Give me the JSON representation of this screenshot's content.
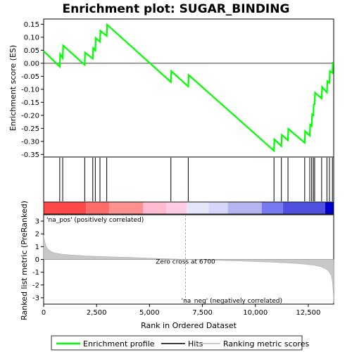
{
  "chart_data": {
    "type": "line",
    "title": "Enrichment plot: SUGAR_BINDING",
    "n_genes": 13700,
    "enrichment_panel": {
      "ylabel": "Enrichment score (ES)",
      "ylim": [
        -0.36,
        0.17
      ],
      "yticks": [
        0.15,
        0.1,
        0.05,
        0.0,
        -0.05,
        -0.1,
        -0.15,
        -0.2,
        -0.25,
        -0.3,
        -0.35
      ],
      "ytick_labels": [
        "0.15",
        "0.10",
        "0.05",
        "0.00",
        "-0.05",
        "-0.10",
        "-0.15",
        "-0.20",
        "-0.25",
        "-0.30",
        "-0.35"
      ],
      "series": [
        {
          "name": "Enrichment profile",
          "color": "#00ff00",
          "x": [
            0,
            760,
            780,
            900,
            920,
            1940,
            1960,
            2320,
            2340,
            2440,
            2460,
            2660,
            2680,
            2980,
            3000,
            6010,
            6030,
            6830,
            6850,
            10880,
            10900,
            11230,
            11250,
            11540,
            11560,
            12330,
            12350,
            12570,
            12590,
            12660,
            12680,
            12740,
            12760,
            12800,
            12820,
            13130,
            13150,
            13380,
            13400,
            13500,
            13520,
            13640,
            13660
          ],
          "y": [
            0.047,
            -0.013,
            0.035,
            0.02,
            0.068,
            -0.006,
            0.041,
            0.018,
            0.058,
            0.049,
            0.097,
            0.082,
            0.125,
            0.105,
            0.148,
            -0.072,
            -0.03,
            -0.089,
            -0.045,
            -0.336,
            -0.292,
            -0.318,
            -0.275,
            -0.296,
            -0.252,
            -0.305,
            -0.261,
            -0.278,
            -0.236,
            -0.241,
            -0.197,
            -0.2,
            -0.158,
            -0.157,
            -0.113,
            -0.135,
            -0.091,
            -0.112,
            -0.069,
            -0.075,
            -0.03,
            -0.037,
            0.005
          ]
        }
      ]
    },
    "hits_panel": {
      "label": "Hits",
      "positions": [
        760,
        900,
        1940,
        2320,
        2440,
        2660,
        2980,
        6010,
        6830,
        10880,
        11230,
        11540,
        12330,
        12570,
        12660,
        12740,
        12800,
        13130,
        13380,
        13500,
        13640
      ]
    },
    "heatmap_bar": {
      "segments": [
        {
          "from": 0,
          "to": 2000,
          "color": "#ff4848"
        },
        {
          "from": 2000,
          "to": 3100,
          "color": "#ff6a6a"
        },
        {
          "from": 3100,
          "to": 4700,
          "color": "#ff9090"
        },
        {
          "from": 4700,
          "to": 5800,
          "color": "#ffbbd0"
        },
        {
          "from": 5800,
          "to": 6750,
          "color": "#ffcce6"
        },
        {
          "from": 6750,
          "to": 7800,
          "color": "#e6e6fa"
        },
        {
          "from": 7800,
          "to": 8700,
          "color": "#d6d6fa"
        },
        {
          "from": 8700,
          "to": 10300,
          "color": "#b4b4f0"
        },
        {
          "from": 10300,
          "to": 11300,
          "color": "#7878f0"
        },
        {
          "from": 11300,
          "to": 13300,
          "color": "#5050e0"
        },
        {
          "from": 13300,
          "to": 13700,
          "color": "#0000cc"
        }
      ]
    },
    "metric_panel": {
      "ylabel": "Ranked list metric (PreRanked)",
      "xlabel": "Rank in Ordered Dataset",
      "ylim": [
        -3.5,
        3.5
      ],
      "yticks": [
        3,
        2,
        1,
        0,
        -1,
        -2,
        -3
      ],
      "ytick_labels": [
        "3",
        "2",
        "1",
        "0",
        "-1",
        "-2",
        "-3"
      ],
      "xticks": [
        0,
        2500,
        5000,
        7500,
        10000,
        12500
      ],
      "xtick_labels": [
        "0",
        "2,500",
        "5,000",
        "7,500",
        "10,000",
        "12,500"
      ],
      "x": [
        0,
        40,
        100,
        200,
        350,
        500,
        700,
        1000,
        1500,
        2000,
        3000,
        4000,
        5000,
        6000,
        6700,
        7500,
        8500,
        9500,
        10500,
        11000,
        11500,
        12000,
        12400,
        12800,
        13100,
        13300,
        13450,
        13550,
        13620,
        13660,
        13690,
        13700
      ],
      "y": [
        1.9,
        1.5,
        1.1,
        0.8,
        0.62,
        0.52,
        0.45,
        0.38,
        0.32,
        0.27,
        0.21,
        0.16,
        0.1,
        0.04,
        0.0,
        -0.04,
        -0.09,
        -0.14,
        -0.2,
        -0.23,
        -0.27,
        -0.32,
        -0.38,
        -0.46,
        -0.58,
        -0.72,
        -0.9,
        -1.15,
        -1.5,
        -2.1,
        -2.9,
        -3.4
      ],
      "zero_cross_label": "Zero cross at 6700",
      "zero_cross": 6700,
      "pos_label": "'na_pos' (positively correlated)",
      "neg_label": "'na_neg' (negatively correlated)",
      "pos_color": "#cc0000",
      "neg_color": "#0000cc"
    },
    "legend": [
      {
        "label": "Enrichment profile",
        "color": "#00ff00"
      },
      {
        "label": "Hits",
        "color": "#000000"
      },
      {
        "label": "Ranking metric scores",
        "color": "#c0c0c0"
      }
    ]
  }
}
